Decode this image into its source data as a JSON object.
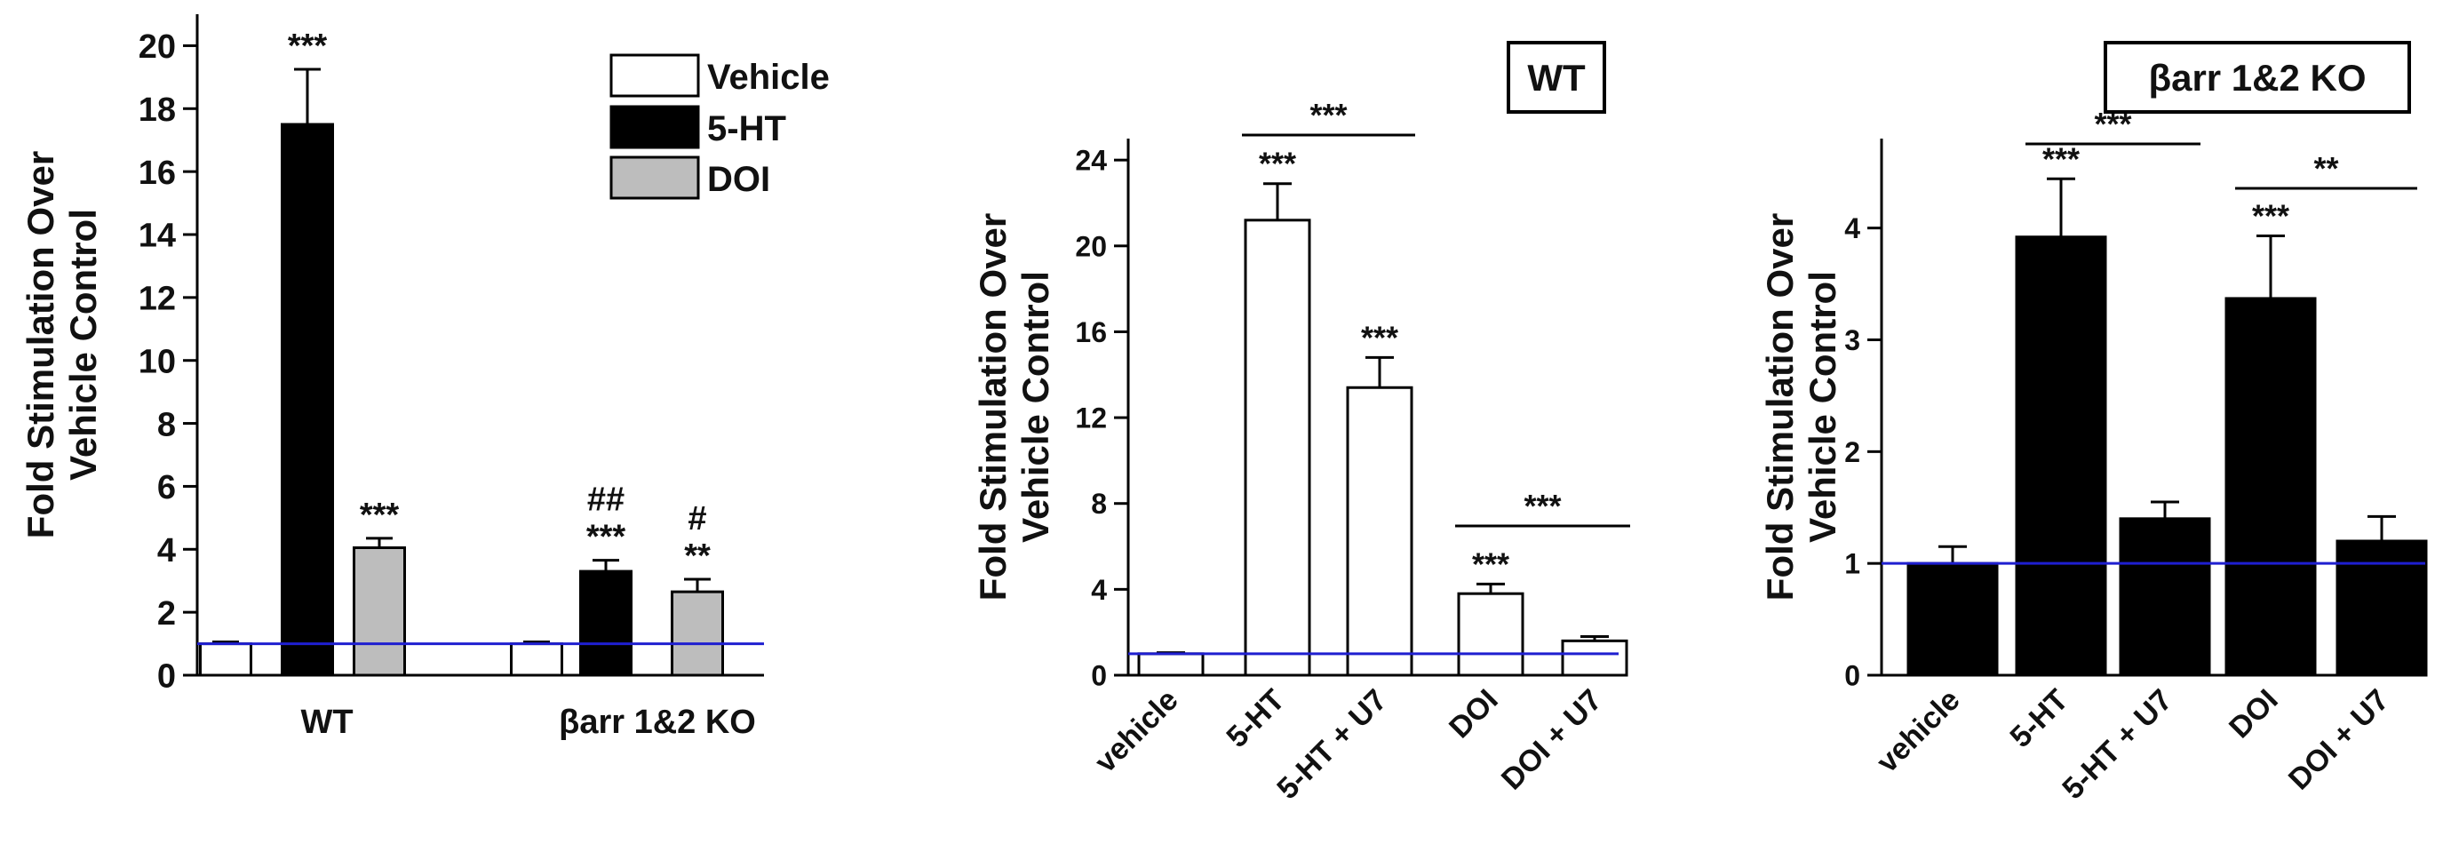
{
  "chart_data": [
    {
      "type": "bar",
      "groups": [
        "WT",
        "βarr 1&2 KO"
      ],
      "series": [
        {
          "name": "Vehicle",
          "values": [
            1.0,
            1.0
          ],
          "errors": [
            0.06,
            0.06
          ],
          "fill": "#ffffff"
        },
        {
          "name": "5-HT",
          "values": [
            17.5,
            3.3
          ],
          "errors": [
            1.75,
            0.35
          ],
          "fill": "#000000"
        },
        {
          "name": "DOI",
          "values": [
            4.05,
            2.65
          ],
          "errors": [
            0.3,
            0.4
          ],
          "fill": "#bdbdbd"
        }
      ],
      "annotations": [
        [
          "",
          ""
        ],
        [
          "***",
          "##\n***"
        ],
        [
          "***",
          "#\n**"
        ]
      ],
      "ylabel": "Fold Stimulation Over\nVehicle Control",
      "ylim": [
        0,
        21
      ],
      "yticks": [
        "0",
        "2",
        "4",
        "6",
        "8",
        "10",
        "12",
        "14",
        "16",
        "18",
        "20"
      ],
      "baseline": 1.0,
      "baseline_color": "#1f1fd0",
      "legend": "top-right"
    },
    {
      "type": "bar",
      "title": "WT",
      "categories": [
        "vehicle",
        "5-HT",
        "5-HT + U7",
        "DOI",
        "DOI + U7"
      ],
      "values": [
        1.0,
        21.2,
        13.4,
        3.8,
        1.6
      ],
      "errors": [
        0.05,
        1.7,
        1.4,
        0.45,
        0.2
      ],
      "labels": [
        "",
        "***",
        "***",
        "***",
        ""
      ],
      "brackets": [
        {
          "from": 1,
          "to": 2,
          "label": "***"
        },
        {
          "from": 3,
          "to": 4,
          "label": "***"
        }
      ],
      "fill": "#ffffff",
      "ylabel": "Fold Stimulation Over\nVehicle Control",
      "ylim": [
        0,
        25
      ],
      "yticks": [
        "0",
        "4",
        "8",
        "12",
        "16",
        "20",
        "24"
      ],
      "baseline": 1.0,
      "baseline_color": "#1f1fd0"
    },
    {
      "type": "bar",
      "title": "βarr 1&2 KO",
      "categories": [
        "vehicle",
        "5-HT",
        "5-HT + U7",
        "DOI",
        "DOI + U7"
      ],
      "values": [
        1.0,
        3.92,
        1.4,
        3.37,
        1.2
      ],
      "errors": [
        0.15,
        0.52,
        0.15,
        0.56,
        0.22
      ],
      "labels": [
        "",
        "***",
        "",
        "***",
        ""
      ],
      "brackets": [
        {
          "from": 1,
          "to": 2,
          "label": "***"
        },
        {
          "from": 3,
          "to": 4,
          "label": "**"
        }
      ],
      "fill": "#000000",
      "ylabel": "Fold Stimulation Over\nVehicle Control",
      "ylim": [
        0,
        4.8
      ],
      "yticks": [
        "0",
        "1",
        "2",
        "3",
        "4"
      ],
      "baseline": 1.0,
      "baseline_color": "#1f1fd0"
    }
  ]
}
